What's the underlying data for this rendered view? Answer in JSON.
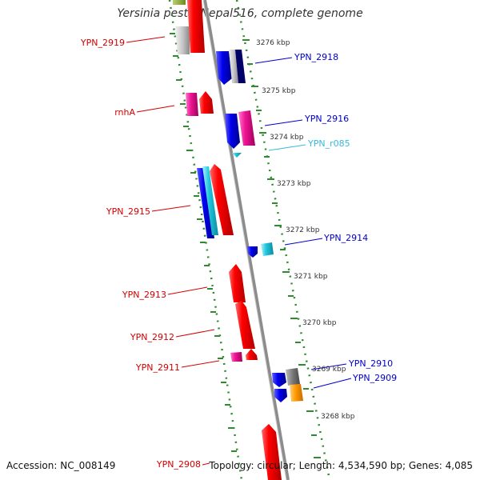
{
  "title": "Yersinia pestis Nepal516, complete genome",
  "footer": {
    "accession": "Accession: NC_008149",
    "summary": "Topology: circular; Length: 4,534,590 bp; Genes: 4,085"
  },
  "colors": {
    "reverse_strand": "#d40000",
    "forward_strand": "#0000cc",
    "rna": "#33bbdd",
    "track_dots": "#2e8b2e",
    "backbone": "#888888"
  },
  "kbp_ticks": [
    "3276 kbp",
    "3275 kbp",
    "3274 kbp",
    "3273 kbp",
    "3272 kbp",
    "3271 kbp",
    "3270 kbp",
    "3269 kbp",
    "3268 kbp"
  ],
  "genes_left": [
    "YPN_2919",
    "rnhA",
    "YPN_2915",
    "YPN_2913",
    "YPN_2912",
    "YPN_2911",
    "YPN_2908"
  ],
  "genes_right": [
    "YPN_2918",
    "YPN_2916",
    "YPN_r085",
    "YPN_2914",
    "YPN_2910",
    "YPN_2909"
  ]
}
